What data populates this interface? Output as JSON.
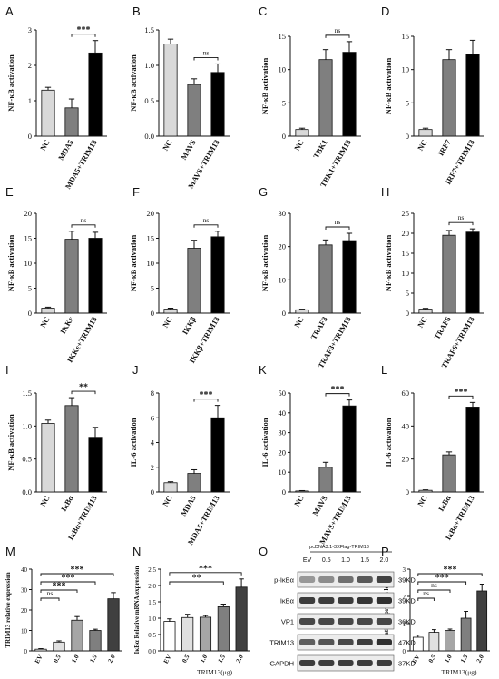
{
  "chart_data": [
    {
      "panel": "A",
      "type": "bar",
      "ylabel": "NF-κB activation",
      "categories": [
        "NC",
        "MDA5",
        "MDA5+TRIM13"
      ],
      "values": [
        1.3,
        0.8,
        2.35
      ],
      "errors": [
        0.08,
        0.25,
        0.35
      ],
      "ylim": [
        0,
        3
      ],
      "yticks": [
        0,
        1,
        2,
        3
      ],
      "colors": [
        "#d9d9d9",
        "#7f7f7f",
        "#000000"
      ],
      "significance": [
        {
          "from": 1,
          "to": 2,
          "label": "***"
        }
      ]
    },
    {
      "panel": "B",
      "type": "bar",
      "ylabel": "NF-κB activation",
      "categories": [
        "NC",
        "MAVS",
        "MAVS+TRIM13"
      ],
      "values": [
        1.3,
        0.73,
        0.9
      ],
      "errors": [
        0.07,
        0.08,
        0.12
      ],
      "ylim": [
        0,
        1.5
      ],
      "yticks": [
        0.0,
        0.5,
        1.0,
        1.5
      ],
      "colors": [
        "#d9d9d9",
        "#7f7f7f",
        "#000000"
      ],
      "significance": [
        {
          "from": 1,
          "to": 2,
          "label": "ns"
        }
      ]
    },
    {
      "panel": "C",
      "type": "bar",
      "ylabel": "NF-κB activation",
      "categories": [
        "NC",
        "TBK1",
        "TBK1+TRIM13"
      ],
      "values": [
        1.0,
        11.5,
        12.6
      ],
      "errors": [
        0.2,
        1.5,
        1.6
      ],
      "ylim": [
        0,
        15
      ],
      "yticks": [
        0,
        5,
        10,
        15
      ],
      "colors": [
        "#d9d9d9",
        "#7f7f7f",
        "#000000"
      ],
      "significance": [
        {
          "from": 1,
          "to": 2,
          "label": "ns"
        }
      ]
    },
    {
      "panel": "D",
      "type": "bar",
      "ylabel": "NF-κB activation",
      "categories": [
        "NC",
        "IRF7",
        "IRF7+TRIM13"
      ],
      "values": [
        1.0,
        11.5,
        12.3
      ],
      "errors": [
        0.2,
        1.5,
        2.1
      ],
      "ylim": [
        0,
        15
      ],
      "yticks": [
        0,
        5,
        10,
        15
      ],
      "colors": [
        "#d9d9d9",
        "#7f7f7f",
        "#000000"
      ],
      "significance": []
    },
    {
      "panel": "E",
      "type": "bar",
      "ylabel": "NF-κB activation",
      "categories": [
        "NC",
        "IKKε",
        "IKKε+TRIM13"
      ],
      "values": [
        1.0,
        14.8,
        15.0
      ],
      "errors": [
        0.2,
        1.6,
        1.2
      ],
      "ylim": [
        0,
        20
      ],
      "yticks": [
        0,
        5,
        10,
        15,
        20
      ],
      "colors": [
        "#d9d9d9",
        "#7f7f7f",
        "#000000"
      ],
      "significance": [
        {
          "from": 1,
          "to": 2,
          "label": "ns"
        }
      ]
    },
    {
      "panel": "F",
      "type": "bar",
      "ylabel": "NF-κB activation",
      "categories": [
        "NC",
        "IKKβ",
        "IKKβ+TRIM13"
      ],
      "values": [
        0.8,
        13.0,
        15.3
      ],
      "errors": [
        0.2,
        1.6,
        1.1
      ],
      "ylim": [
        0,
        20
      ],
      "yticks": [
        0,
        5,
        10,
        15,
        20
      ],
      "colors": [
        "#d9d9d9",
        "#7f7f7f",
        "#000000"
      ],
      "significance": [
        {
          "from": 1,
          "to": 2,
          "label": "ns"
        }
      ]
    },
    {
      "panel": "G",
      "type": "bar",
      "ylabel": "NF-κB activation",
      "categories": [
        "NC",
        "TRAF3",
        "TRAF3+TRIM13"
      ],
      "values": [
        1.0,
        20.5,
        21.8
      ],
      "errors": [
        0.2,
        1.5,
        2.2
      ],
      "ylim": [
        0,
        30
      ],
      "yticks": [
        0,
        10,
        20,
        30
      ],
      "colors": [
        "#d9d9d9",
        "#7f7f7f",
        "#000000"
      ],
      "significance": [
        {
          "from": 1,
          "to": 2,
          "label": "ns"
        }
      ]
    },
    {
      "panel": "H",
      "type": "bar",
      "ylabel": "NF-κB activation",
      "categories": [
        "NC",
        "TRAF6",
        "TRAF6+TRIM13"
      ],
      "values": [
        1.0,
        19.5,
        20.3
      ],
      "errors": [
        0.2,
        1.2,
        0.8
      ],
      "ylim": [
        0,
        25
      ],
      "yticks": [
        0,
        5,
        10,
        15,
        20,
        25
      ],
      "colors": [
        "#d9d9d9",
        "#7f7f7f",
        "#000000"
      ],
      "significance": [
        {
          "from": 1,
          "to": 2,
          "label": "ns"
        }
      ]
    },
    {
      "panel": "I",
      "type": "bar",
      "ylabel": "NF-κB activation",
      "categories": [
        "NC",
        "IκBα",
        "IκBα+TRIM13"
      ],
      "values": [
        1.04,
        1.31,
        0.83
      ],
      "errors": [
        0.05,
        0.12,
        0.15
      ],
      "ylim": [
        0,
        1.5
      ],
      "yticks": [
        0.0,
        0.5,
        1.0,
        1.5
      ],
      "colors": [
        "#d9d9d9",
        "#7f7f7f",
        "#000000"
      ],
      "significance": [
        {
          "from": 1,
          "to": 2,
          "label": "**"
        }
      ]
    },
    {
      "panel": "J",
      "type": "bar",
      "ylabel": "IL-6 activation",
      "categories": [
        "NC",
        "MDA5",
        "MDA5+TRIM13"
      ],
      "values": [
        0.75,
        1.5,
        6.0
      ],
      "errors": [
        0.08,
        0.3,
        1.0
      ],
      "ylim": [
        0,
        8
      ],
      "yticks": [
        0,
        2,
        4,
        6,
        8
      ],
      "colors": [
        "#d9d9d9",
        "#7f7f7f",
        "#000000"
      ],
      "significance": [
        {
          "from": 1,
          "to": 2,
          "label": "***"
        }
      ]
    },
    {
      "panel": "K",
      "type": "bar",
      "ylabel": "IL-6 activation",
      "categories": [
        "NC",
        "MAVS",
        "MAVS+TRIM13"
      ],
      "values": [
        0.5,
        12.5,
        43.5
      ],
      "errors": [
        0.2,
        2.5,
        3.0
      ],
      "ylim": [
        0,
        50
      ],
      "yticks": [
        0,
        10,
        20,
        30,
        40,
        50
      ],
      "colors": [
        "#d9d9d9",
        "#7f7f7f",
        "#000000"
      ],
      "significance": [
        {
          "from": 1,
          "to": 2,
          "label": "***"
        }
      ]
    },
    {
      "panel": "L",
      "type": "bar",
      "ylabel": "IL-6 activation",
      "categories": [
        "NC",
        "IκBα",
        "IκBα+TRIM13"
      ],
      "values": [
        1.0,
        22.5,
        51.5
      ],
      "errors": [
        0.3,
        1.8,
        2.8
      ],
      "ylim": [
        0,
        60
      ],
      "yticks": [
        0,
        20,
        40,
        60
      ],
      "colors": [
        "#d9d9d9",
        "#7f7f7f",
        "#000000"
      ],
      "significance": [
        {
          "from": 1,
          "to": 2,
          "label": "***"
        }
      ]
    },
    {
      "panel": "M",
      "type": "bar",
      "ylabel": "TRIM13 relative expression",
      "categories": [
        "EV",
        "0.5",
        "1.0",
        "1.5",
        "2.0"
      ],
      "values": [
        0.8,
        4.3,
        15.0,
        10.0,
        25.5
      ],
      "errors": [
        0.3,
        0.6,
        1.8,
        0.6,
        3.0
      ],
      "ylim": [
        0,
        40
      ],
      "yticks": [
        0,
        10,
        20,
        30,
        40
      ],
      "colors": [
        "#ffffff",
        "#e0e0e0",
        "#a6a6a6",
        "#7f7f7f",
        "#404040"
      ],
      "significance": [
        {
          "from": 0,
          "to": 1,
          "label": "ns"
        },
        {
          "from": 0,
          "to": 2,
          "label": "***"
        },
        {
          "from": 0,
          "to": 3,
          "label": "***"
        },
        {
          "from": 0,
          "to": 4,
          "label": "***"
        }
      ]
    },
    {
      "panel": "N",
      "type": "bar",
      "ylabel": "IκBα Relative mRNA expression",
      "xlabel": "TRIM13(μg)",
      "categories": [
        "EV",
        "0.5",
        "1.0",
        "1.5",
        "2.0"
      ],
      "values": [
        0.9,
        1.02,
        1.03,
        1.35,
        1.95
      ],
      "errors": [
        0.08,
        0.1,
        0.05,
        0.08,
        0.25
      ],
      "ylim": [
        0,
        2.5
      ],
      "yticks": [
        0.0,
        0.5,
        1.0,
        1.5,
        2.0,
        2.5
      ],
      "colors": [
        "#ffffff",
        "#e0e0e0",
        "#a6a6a6",
        "#7f7f7f",
        "#404040"
      ],
      "significance": [
        {
          "from": 0,
          "to": 3,
          "label": "**"
        },
        {
          "from": 0,
          "to": 4,
          "label": "***"
        }
      ]
    },
    {
      "panel": "P",
      "type": "bar",
      "ylabel": "Relative expression levels",
      "xlabel": "TRIM13(μg)",
      "categories": [
        "EV",
        "0.5",
        "1.0",
        "1.5",
        "2.0"
      ],
      "values": [
        0.5,
        0.68,
        0.75,
        1.2,
        2.2
      ],
      "errors": [
        0.08,
        0.1,
        0.05,
        0.25,
        0.25
      ],
      "ylim": [
        0,
        3
      ],
      "yticks": [
        0,
        1,
        2,
        3
      ],
      "colors": [
        "#ffffff",
        "#e0e0e0",
        "#a6a6a6",
        "#7f7f7f",
        "#404040"
      ],
      "significance": [
        {
          "from": 0,
          "to": 1,
          "label": "ns"
        },
        {
          "from": 0,
          "to": 2,
          "label": "ns"
        },
        {
          "from": 0,
          "to": 3,
          "label": "***"
        },
        {
          "from": 0,
          "to": 4,
          "label": "***"
        }
      ]
    }
  ],
  "panel_labels": [
    "A",
    "B",
    "C",
    "D",
    "E",
    "F",
    "G",
    "H",
    "I",
    "J",
    "K",
    "L",
    "M",
    "N",
    "O",
    "P"
  ],
  "western_blot": {
    "panel": "O",
    "lanes": [
      "EV",
      "0.5",
      "1.0",
      "1.5",
      "2.0"
    ],
    "header": "pcDNA3.1-3XFlag-TRIM13",
    "rows": [
      {
        "protein": "p-IκBα",
        "size": "39KD",
        "intensities": [
          0.45,
          0.5,
          0.62,
          0.72,
          0.82
        ]
      },
      {
        "protein": "IκBα",
        "size": "39KD",
        "intensities": [
          0.85,
          0.85,
          0.85,
          0.88,
          0.9
        ]
      },
      {
        "protein": "VP1",
        "size": "36KD",
        "intensities": [
          0.8,
          0.8,
          0.8,
          0.8,
          0.8
        ]
      },
      {
        "protein": "TRIM13",
        "size": "47KD",
        "intensities": [
          0.7,
          0.75,
          0.8,
          0.85,
          0.9
        ]
      },
      {
        "protein": "GAPDH",
        "size": "37KD",
        "intensities": [
          0.85,
          0.85,
          0.85,
          0.85,
          0.85
        ]
      }
    ]
  }
}
